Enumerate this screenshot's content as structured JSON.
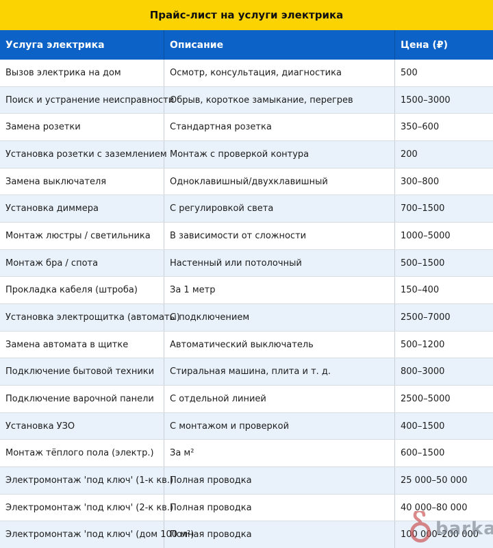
{
  "title": "Прайс-лист на услуги электрика",
  "table": {
    "columns": [
      "Услуга электрика",
      "Описание",
      "Цена (₽)"
    ],
    "rows": [
      [
        "Вызов электрика на дом",
        "Осмотр, консультация, диагностика",
        "500"
      ],
      [
        "Поиск и устранение неисправности",
        "Обрыв, короткое замыкание, перегрев",
        "1500–3000"
      ],
      [
        "Замена розетки",
        "Стандартная розетка",
        "350–600"
      ],
      [
        "Установка розетки с заземлением",
        "Монтаж с проверкой контура",
        "200"
      ],
      [
        "Замена выключателя",
        "Одноклавишный/двухклавишный",
        "300–800"
      ],
      [
        "Установка диммера",
        "С регулировкой света",
        "700–1500"
      ],
      [
        "Монтаж люстры / светильника",
        "В зависимости от сложности",
        "1000–5000"
      ],
      [
        "Монтаж бра / спота",
        "Настенный или потолочный",
        "500–1500"
      ],
      [
        "Прокладка кабеля (штроба)",
        "За 1 метр",
        "150–400"
      ],
      [
        "Установка электрощитка (автоматы)",
        "С подключением",
        "2500–7000"
      ],
      [
        "Замена автомата в щитке",
        "Автоматический выключатель",
        "500–1200"
      ],
      [
        "Подключение бытовой техники",
        "Стиральная машина, плита и т. д.",
        "800–3000"
      ],
      [
        "Подключение варочной панели",
        "С отдельной линией",
        "2500–5000"
      ],
      [
        "Установка УЗО",
        "С монтажом и проверкой",
        "400–1500"
      ],
      [
        "Монтаж тёплого пола (электр.)",
        "За м²",
        "600–1500"
      ],
      [
        "Электромонтаж 'под ключ' (1-к кв.)",
        "Полная проводка",
        "25 000–50 000"
      ],
      [
        "Электромонтаж 'под ключ' (2-к кв.)",
        "Полная проводка",
        "40 000–80 000"
      ],
      [
        "Электромонтаж 'под ключ' (дом 100 м²)",
        "Полная проводка",
        "100 000–200 000"
      ]
    ]
  },
  "watermark": {
    "text": "barkat.",
    "icon": "hanger-icon"
  },
  "colors": {
    "title_bg": "#fbd303",
    "header_bg": "#0c62c6",
    "header_text": "#ffffff",
    "row_bg": "#ffffff",
    "row_alt_bg": "#e9f1fa",
    "body_text": "#1c1c1c",
    "grid_line": "#c9ced4",
    "watermark_icon": "#c94b4b",
    "watermark_text": "#767e89"
  }
}
